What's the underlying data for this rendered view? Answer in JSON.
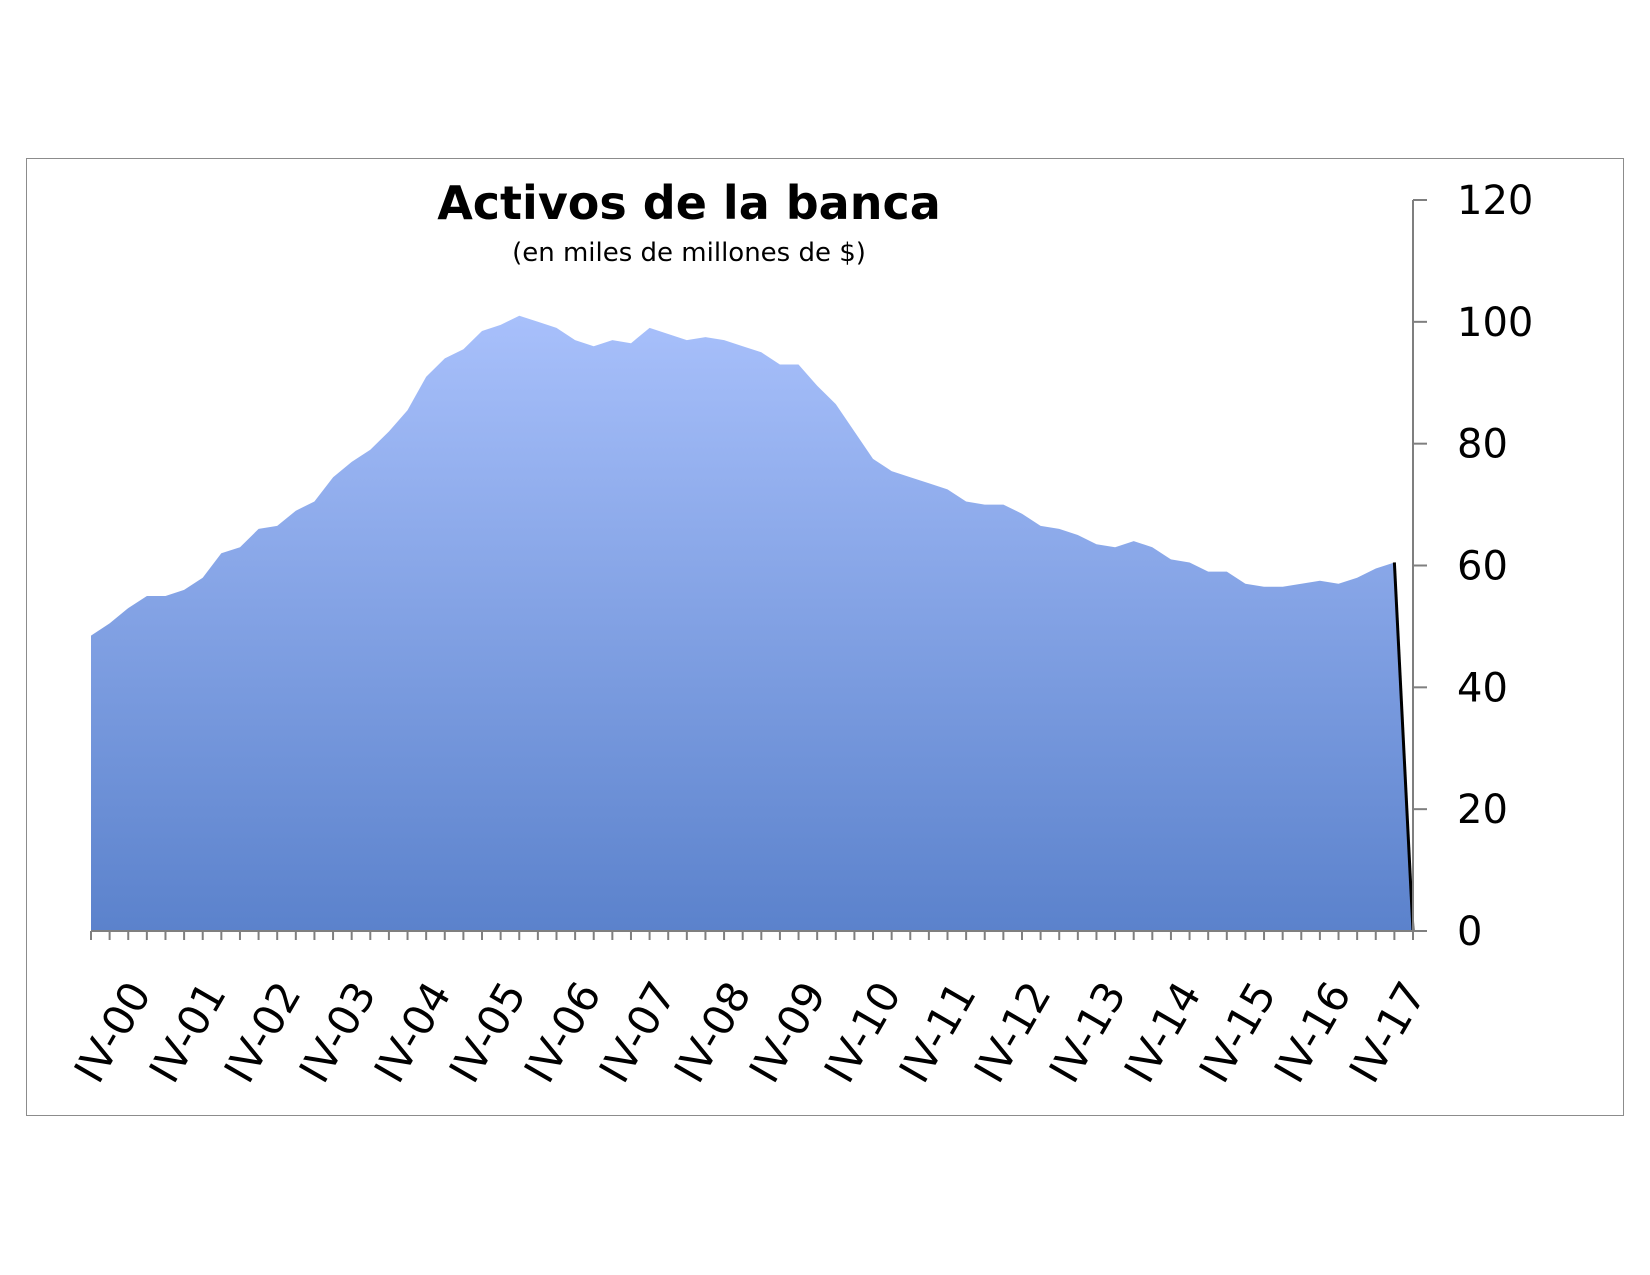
{
  "chart_data": {
    "type": "area",
    "title": "Activos de la banca",
    "subtitle": "(en miles de millones de $)",
    "xlabel": "",
    "ylabel": "",
    "ylim": [
      0,
      120
    ],
    "y_ticks": [
      "0",
      "20",
      "40",
      "60",
      "80",
      "100",
      "120"
    ],
    "y_axis_position": "right",
    "grid": false,
    "legend": "none",
    "fill_color_top": "#a8c0fb",
    "fill_color_bottom": "#5b82cc",
    "x_tick_labels": [
      "IV-00",
      "IV-01",
      "IV-02",
      "IV-03",
      "IV-04",
      "IV-05",
      "IV-06",
      "IV-07",
      "IV-08",
      "IV-09",
      "IV-10",
      "IV-11",
      "IV-12",
      "IV-13",
      "IV-14",
      "IV-15",
      "IV-16",
      "IV-17"
    ],
    "series": [
      {
        "values": [
          48.5,
          50.5,
          53.0,
          55.0,
          55.0,
          56.0,
          58.0,
          62.0,
          63.0,
          66.0,
          66.5,
          69.0,
          70.5,
          74.5,
          77.0,
          79.0,
          82.0,
          85.5,
          91.0,
          94.0,
          95.5,
          98.5,
          99.5,
          101.0,
          100.0,
          99.0,
          97.0,
          96.0,
          97.0,
          96.5,
          99.0,
          98.0,
          97.0,
          97.5,
          97.0,
          96.0,
          95.0,
          93.0,
          93.0,
          89.5,
          86.5,
          82.0,
          77.5,
          75.5,
          74.5,
          73.5,
          72.5,
          70.5,
          70.0,
          70.0,
          68.5,
          66.5,
          66.0,
          65.0,
          63.5,
          63.0,
          64.0,
          63.0,
          61.0,
          60.5,
          59.0,
          59.0,
          57.0,
          56.5,
          56.5,
          57.0,
          57.5,
          57.0,
          58.0,
          59.5,
          60.5,
          0
        ]
      }
    ]
  }
}
